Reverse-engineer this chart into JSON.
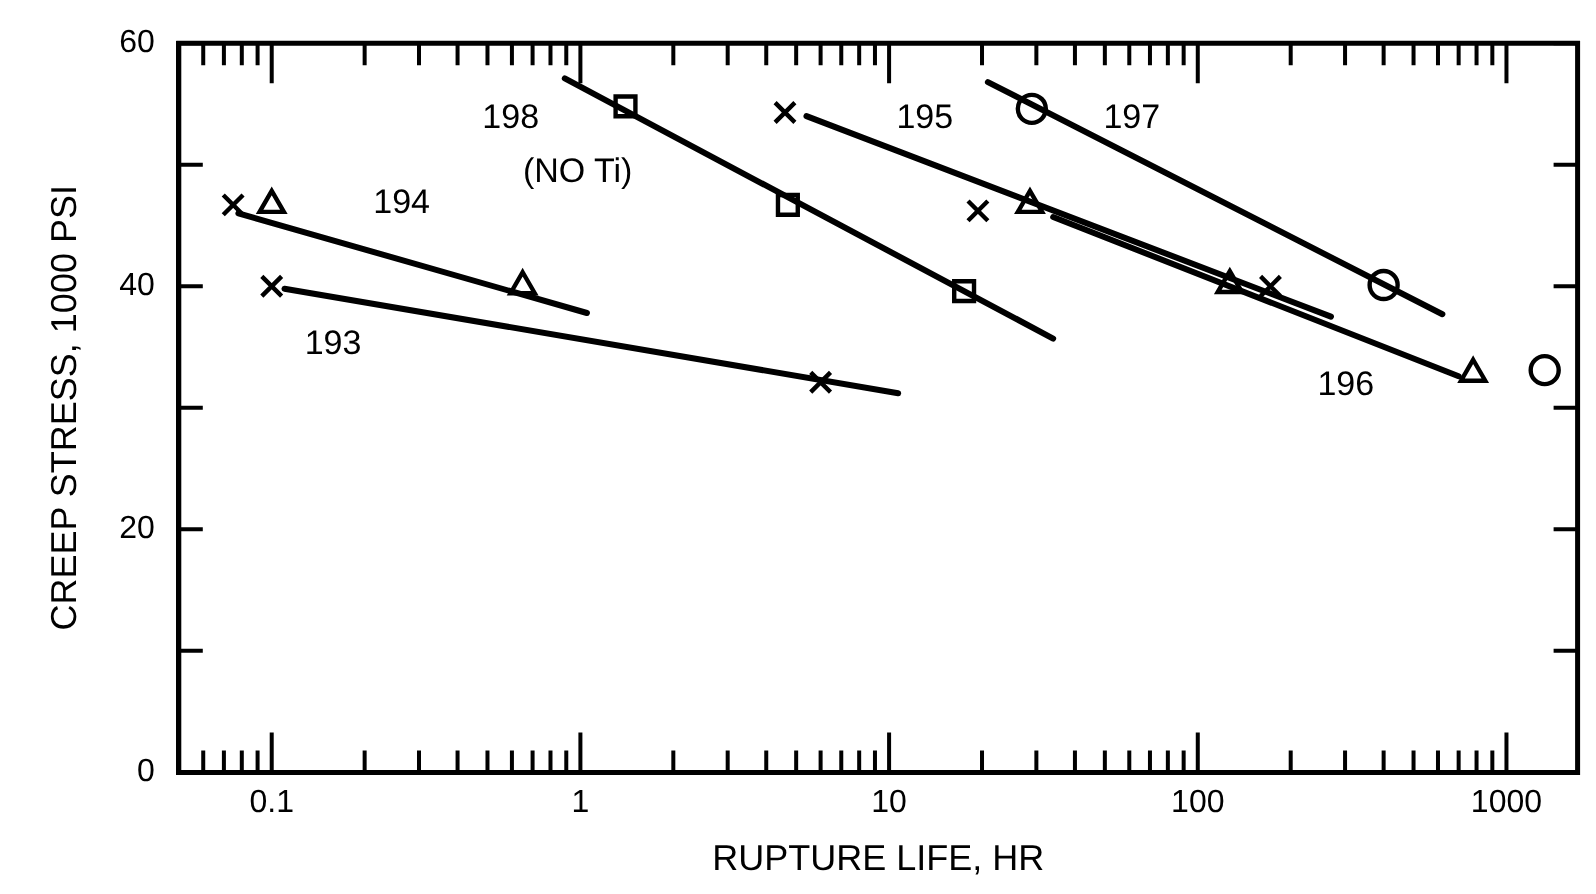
{
  "chart_data": {
    "type": "scatter",
    "xlabel": "RUPTURE LIFE, HR",
    "ylabel": "CREEP STRESS, 1000 PSI",
    "log": "x",
    "grid": false,
    "legend": false,
    "xlim": [
      0.05,
      1700
    ],
    "ylim": [
      0,
      60
    ],
    "xticks": [
      {
        "value": 0.06,
        "label": null
      },
      {
        "value": 0.07,
        "label": null
      },
      {
        "value": 0.08,
        "label": null
      },
      {
        "value": 0.09,
        "label": null
      },
      0.1,
      {
        "value": 0.2,
        "label": null
      },
      {
        "value": 0.3,
        "label": null
      },
      {
        "value": 0.4,
        "label": null
      },
      {
        "value": 0.5,
        "label": null
      },
      {
        "value": 0.6,
        "label": null
      },
      {
        "value": 0.7,
        "label": null
      },
      {
        "value": 0.8,
        "label": null
      },
      {
        "value": 0.9,
        "label": null
      },
      1,
      {
        "value": 2,
        "label": null
      },
      {
        "value": 3,
        "label": null
      },
      {
        "value": 4,
        "label": null
      },
      {
        "value": 5,
        "label": null
      },
      {
        "value": 6,
        "label": null
      },
      {
        "value": 7,
        "label": null
      },
      {
        "value": 8,
        "label": null
      },
      {
        "value": 9,
        "label": null
      },
      10,
      {
        "value": 20,
        "label": null
      },
      {
        "value": 30,
        "label": null
      },
      {
        "value": 40,
        "label": null
      },
      {
        "value": 50,
        "label": null
      },
      {
        "value": 60,
        "label": null
      },
      {
        "value": 70,
        "label": null
      },
      {
        "value": 80,
        "label": null
      },
      {
        "value": 90,
        "label": null
      },
      100,
      {
        "value": 200,
        "label": null
      },
      {
        "value": 300,
        "label": null
      },
      {
        "value": 400,
        "label": null
      },
      {
        "value": 500,
        "label": null
      },
      {
        "value": 600,
        "label": null
      },
      {
        "value": 700,
        "label": null
      },
      {
        "value": 800,
        "label": null
      },
      {
        "value": 900,
        "label": null
      },
      1000
    ],
    "yticks": [
      0,
      {
        "value": 10,
        "label": null
      },
      20,
      {
        "value": 30,
        "label": null
      },
      40,
      {
        "value": 50,
        "label": null
      },
      60
    ],
    "series": [
      {
        "marker": "cross",
        "color": "#000000",
        "x": [
          0.075,
          0.1,
          6.0
        ],
        "values": [
          46.7,
          40,
          32.1
        ]
      },
      {
        "type": "line",
        "marker": "none",
        "color": "#000000",
        "x": [
          0.11,
          10.7
        ],
        "values": [
          39.8,
          31.2
        ]
      },
      {
        "marker": "triangle",
        "color": "#000000",
        "x": [
          0.1,
          0.65
        ],
        "values": [
          46.7,
          40
        ]
      },
      {
        "type": "line",
        "marker": "none",
        "color": "#000000",
        "x": [
          0.078,
          1.05
        ],
        "values": [
          46,
          37.8
        ]
      },
      {
        "marker": "square",
        "color": "#000000",
        "x": [
          1.4,
          4.7,
          17.5
        ],
        "values": [
          54.8,
          46.7,
          39.6
        ]
      },
      {
        "type": "line",
        "marker": "none",
        "color": "#000000",
        "x": [
          0.89,
          34
        ],
        "values": [
          57.1,
          35.7
        ]
      },
      {
        "marker": "cross",
        "color": "#000000",
        "x": [
          4.6,
          19.4,
          172
        ],
        "values": [
          54.3,
          46.2,
          40
        ]
      },
      {
        "type": "line",
        "marker": "none",
        "color": "#000000",
        "x": [
          5.4,
          270
        ],
        "values": [
          54,
          37.5
        ]
      },
      {
        "marker": "triangle",
        "color": "#000000",
        "x": [
          28.6,
          127,
          780
        ],
        "values": [
          46.7,
          40.1,
          32.8
        ]
      },
      {
        "type": "line",
        "marker": "none",
        "color": "#000000",
        "x": [
          34,
          700
        ],
        "values": [
          45.7,
          32.6
        ]
      },
      {
        "marker": "circle",
        "color": "#000000",
        "x": [
          29,
          400,
          1330
        ],
        "values": [
          54.6,
          40.1,
          33.1
        ]
      },
      {
        "type": "line",
        "marker": "none",
        "color": "#000000",
        "x": [
          20.9,
          620
        ],
        "values": [
          56.8,
          37.7
        ]
      }
    ],
    "annotations": [
      "193",
      "194",
      "198",
      "(NO Ti)",
      "195",
      "197",
      "196"
    ]
  }
}
